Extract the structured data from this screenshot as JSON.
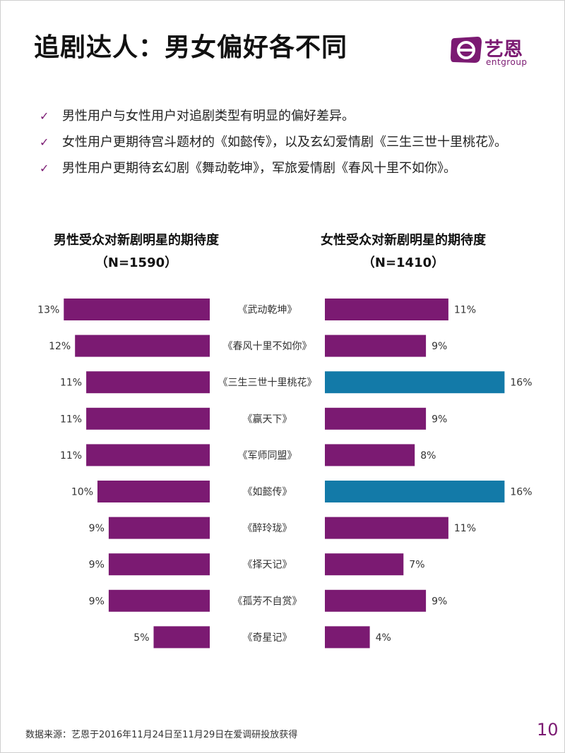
{
  "page": {
    "title": "追剧达人：男女偏好各不同",
    "page_number": "10",
    "source": "数据来源：艺恩于2016年11月24日至11月29日在爱调研投放获得"
  },
  "logo": {
    "name": "艺恩",
    "sub": "entgroup",
    "color": "#7b1a72"
  },
  "bullets": [
    "男性用户与女性用户对追剧类型有明显的偏好差异。",
    "女性用户更期待宫斗题材的《如懿传》，以及玄幻爱情剧《三生三世十里桃花》。",
    "男性用户更期待玄幻剧《舞动乾坤》，军旅爱情剧《春风十里不如你》。"
  ],
  "chart_data": [
    {
      "type": "bar",
      "orientation": "horizontal",
      "title": "男性受众对新剧明星的期待度",
      "subtitle": "（N=1590）",
      "categories": [
        "《武动乾坤》",
        "《春风十里不如你》",
        "《三生三世十里桃花》",
        "《赢天下》",
        "《军师同盟》",
        "《如懿传》",
        "《醉玲珑》",
        "《择天记》",
        "《孤芳不自赏》",
        "《奇星记》"
      ],
      "values": [
        13,
        12,
        11,
        11,
        11,
        10,
        9,
        9,
        9,
        5
      ],
      "labels": [
        "13%",
        "12%",
        "11%",
        "11%",
        "11%",
        "10%",
        "9%",
        "9%",
        "9%",
        "5%"
      ],
      "unit": "%",
      "direction": "leftward",
      "colors": [
        "#7b1a72",
        "#7b1a72",
        "#7b1a72",
        "#7b1a72",
        "#7b1a72",
        "#7b1a72",
        "#7b1a72",
        "#7b1a72",
        "#7b1a72",
        "#7b1a72"
      ]
    },
    {
      "type": "bar",
      "orientation": "horizontal",
      "title": "女性受众对新剧明星的期待度",
      "subtitle": "（N=1410）",
      "categories": [
        "《武动乾坤》",
        "《春风十里不如你》",
        "《三生三世十里桃花》",
        "《赢天下》",
        "《军师同盟》",
        "《如懿传》",
        "《醉玲珑》",
        "《择天记》",
        "《孤芳不自赏》",
        "《奇星记》"
      ],
      "values": [
        11,
        9,
        16,
        9,
        8,
        16,
        11,
        7,
        9,
        4
      ],
      "labels": [
        "11%",
        "9%",
        "16%",
        "9%",
        "8%",
        "16%",
        "11%",
        "7%",
        "9%",
        "4%"
      ],
      "unit": "%",
      "direction": "rightward",
      "colors": [
        "#7b1a72",
        "#7b1a72",
        "#137aa8",
        "#7b1a72",
        "#7b1a72",
        "#137aa8",
        "#7b1a72",
        "#7b1a72",
        "#7b1a72",
        "#7b1a72"
      ]
    }
  ]
}
